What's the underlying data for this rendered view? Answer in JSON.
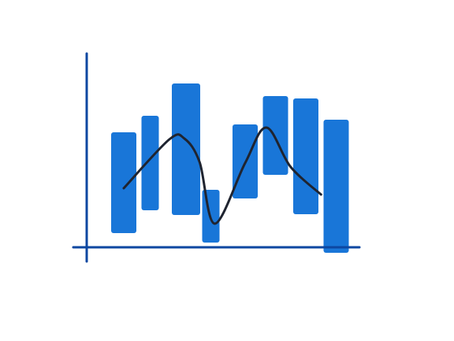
{
  "chart_data": {
    "type": "bar",
    "subtype": "floating-range-with-trend-line",
    "title": "",
    "xlabel": "",
    "ylabel": "",
    "grid": false,
    "legend": "none",
    "bars": [
      {
        "low": 18,
        "high": 146
      },
      {
        "low": 47,
        "high": 167
      },
      {
        "low": 41,
        "high": 208
      },
      {
        "low": 6,
        "high": 73
      },
      {
        "low": 62,
        "high": 156
      },
      {
        "low": 92,
        "high": 192
      },
      {
        "low": 42,
        "high": 189
      },
      {
        "low": -7,
        "high": 162
      }
    ],
    "trend_line": [
      {
        "x": 0,
        "y": 75
      },
      {
        "x": 1.5,
        "y": 137
      },
      {
        "x": 2.0,
        "y": 138
      },
      {
        "x": 2.5,
        "y": 108
      },
      {
        "x": 3.0,
        "y": 30
      },
      {
        "x": 4.0,
        "y": 107
      },
      {
        "x": 4.7,
        "y": 152
      },
      {
        "x": 5.5,
        "y": 102
      },
      {
        "x": 6.5,
        "y": 67
      }
    ],
    "colors": {
      "bar": "#1976D8",
      "axis": "#0D47A1",
      "line": "#1F2430",
      "background": "#FFFFFF"
    }
  }
}
